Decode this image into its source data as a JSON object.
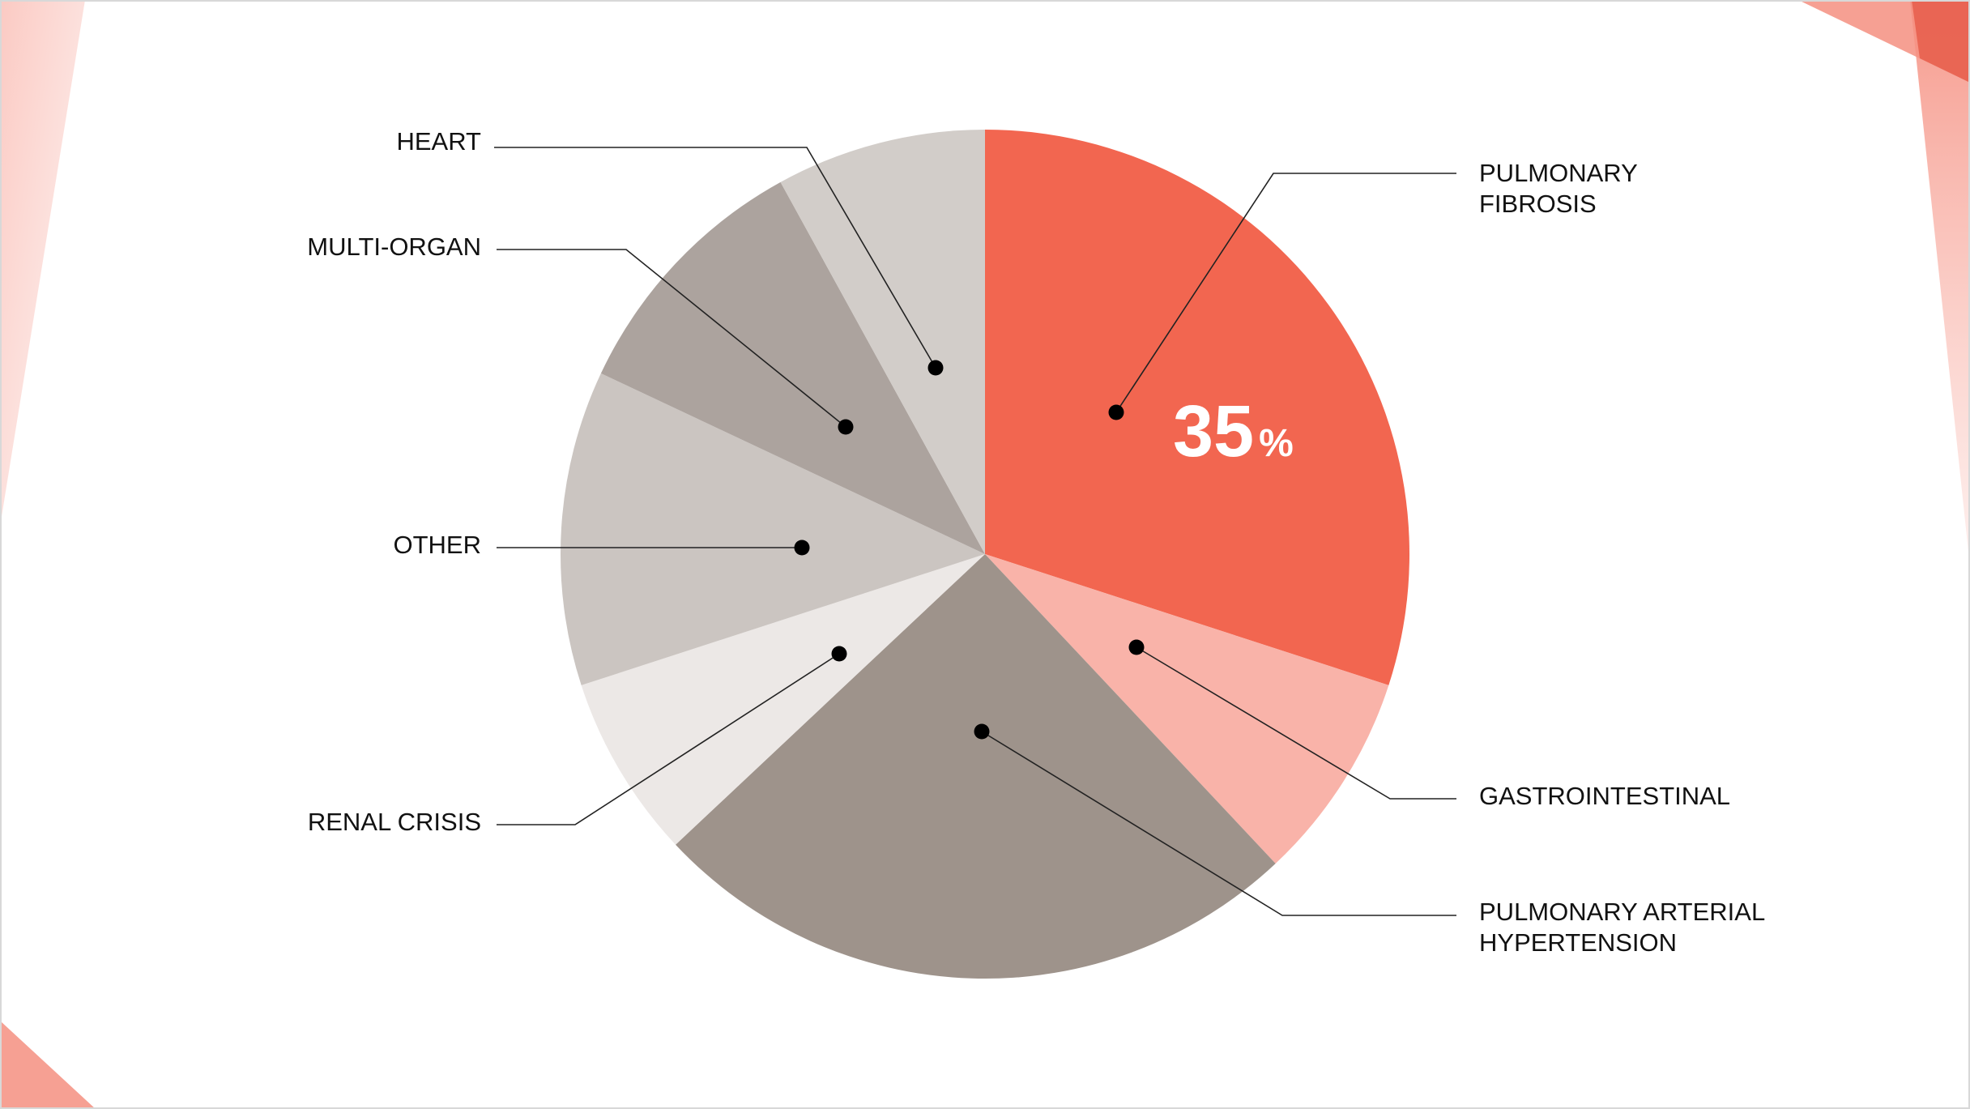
{
  "chart_data": {
    "type": "pie",
    "categories": [
      "PULMONARY FIBROSIS",
      "GASTROINTESTINAL",
      "PULMONARY ARTERIAL HYPERTENSION",
      "RENAL CRISIS",
      "OTHER",
      "MULTI-ORGAN",
      "HEART"
    ],
    "values": [
      30,
      8,
      25,
      7,
      12,
      10,
      8
    ],
    "colors": [
      "#F26650",
      "#F9B3A9",
      "#9E938B",
      "#ECE8E6",
      "#CBC5C1",
      "#ACA39E",
      "#D2CDC9"
    ],
    "label_lines": [
      [
        "PULMONARY",
        "FIBROSIS"
      ],
      [
        "GASTROINTESTINAL"
      ],
      [
        "PULMONARY ARTERIAL",
        "HYPERTENSION"
      ],
      [
        "RENAL CRISIS"
      ],
      [
        "OTHER"
      ],
      [
        "MULTI-ORGAN"
      ],
      [
        "HEART"
      ]
    ],
    "callout": {
      "value": "35",
      "unit": "%"
    },
    "legend": "none"
  },
  "colors": {
    "accent": "#F26650",
    "accent_light": "#F9B3A9"
  }
}
